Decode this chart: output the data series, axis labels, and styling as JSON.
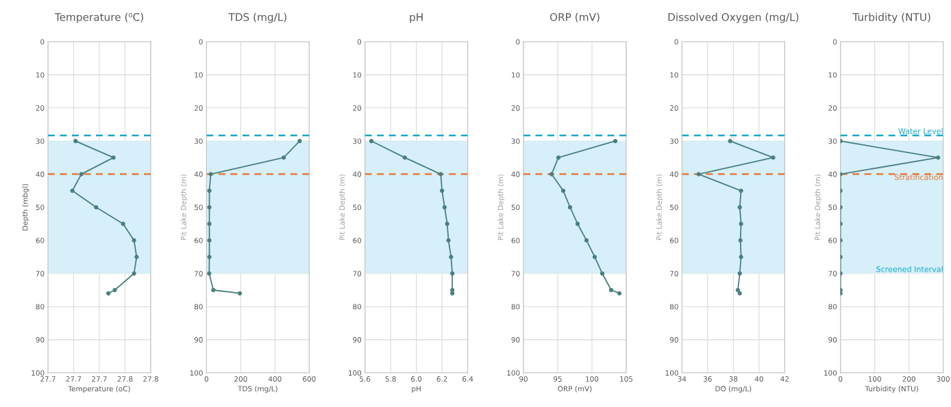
{
  "chart_data": [
    {
      "type": "line",
      "title": "Temperature (⁰C)",
      "xlabel": "Temperature (oC)",
      "ylabel": "Depth (mbgl)",
      "marker": "circle",
      "line_style": "solid",
      "grid": true,
      "series": [
        {
          "color": "#4a7f80",
          "x": [
            27.703,
            27.762,
            27.712,
            27.698,
            27.735,
            27.777,
            27.794,
            27.798,
            27.794,
            27.764,
            27.754
          ],
          "values": [
            30,
            35,
            40,
            45,
            50,
            55,
            60,
            65,
            70,
            75,
            76
          ]
        }
      ],
      "xlim": [
        27.66,
        27.82
      ],
      "xticks": [
        {
          "value": 27.66,
          "label": "27.7"
        },
        {
          "value": 27.7,
          "label": "27.7"
        },
        {
          "value": 27.74,
          "label": "27.7"
        },
        {
          "value": 27.78,
          "label": "27.8"
        },
        {
          "value": 27.82,
          "label": "27.8"
        }
      ],
      "ylim": [
        100,
        0
      ],
      "yticks": [
        0,
        10,
        20,
        30,
        40,
        50,
        60,
        70,
        80,
        90,
        100
      ],
      "ref_lines": [
        {
          "axis": "y",
          "value": 28.3,
          "color": "#17a9c6",
          "line_style": "dashed"
        },
        {
          "axis": "y",
          "value": 40,
          "color": "#e8793a",
          "line_style": "dashed"
        }
      ],
      "bands": [
        {
          "axis": "y",
          "from": 30,
          "to": 70,
          "color": "#d6eff8"
        }
      ]
    },
    {
      "type": "line",
      "title": "TDS (mg/L)",
      "xlabel": "TDS (mg/L)",
      "ylabel": "Pit Lake Depth (m)",
      "marker": "circle",
      "line_style": "solid",
      "grid": true,
      "series": [
        {
          "color": "#4a7f80",
          "x": [
            544,
            451,
            25,
            17,
            17,
            17,
            17,
            17,
            16,
            40,
            195
          ],
          "values": [
            30,
            35,
            40,
            45,
            50,
            55,
            60,
            65,
            70,
            75,
            76
          ]
        }
      ],
      "xlim": [
        0,
        600
      ],
      "xticks": [
        0,
        200,
        400,
        600
      ],
      "ylim": [
        100,
        0
      ],
      "yticks": [
        0,
        10,
        20,
        30,
        40,
        50,
        60,
        70,
        80,
        90,
        100
      ],
      "ref_lines": [
        {
          "axis": "y",
          "value": 28.3,
          "color": "#17a9c6",
          "line_style": "dashed"
        },
        {
          "axis": "y",
          "value": 40,
          "color": "#e8793a",
          "line_style": "dashed"
        }
      ],
      "bands": [
        {
          "axis": "y",
          "from": 30,
          "to": 70,
          "color": "#d6eff8"
        }
      ]
    },
    {
      "type": "line",
      "title": "pH",
      "xlabel": "pH",
      "ylabel": "Pit Lake Depth (m)",
      "marker": "circle",
      "line_style": "solid",
      "grid": true,
      "series": [
        {
          "color": "#4a7f80",
          "x": [
            5.65,
            5.91,
            6.19,
            6.2,
            6.22,
            6.24,
            6.25,
            6.27,
            6.28,
            6.28,
            6.28
          ],
          "values": [
            30,
            35,
            40,
            45,
            50,
            55,
            60,
            65,
            70,
            75,
            76
          ]
        }
      ],
      "xlim": [
        5.6,
        6.4
      ],
      "xticks": [
        {
          "value": 5.6,
          "label": "5.6"
        },
        {
          "value": 5.8,
          "label": "5.8"
        },
        {
          "value": 6.0,
          "label": "6.0"
        },
        {
          "value": 6.2,
          "label": "6.2"
        },
        {
          "value": 6.4,
          "label": "6.4"
        }
      ],
      "ylim": [
        100,
        0
      ],
      "yticks": [
        0,
        10,
        20,
        30,
        40,
        50,
        60,
        70,
        80,
        90,
        100
      ],
      "ref_lines": [
        {
          "axis": "y",
          "value": 28.3,
          "color": "#17a9c6",
          "line_style": "dashed"
        },
        {
          "axis": "y",
          "value": 40,
          "color": "#e8793a",
          "line_style": "dashed"
        }
      ],
      "bands": [
        {
          "axis": "y",
          "from": 30,
          "to": 70,
          "color": "#d6eff8"
        }
      ]
    },
    {
      "type": "line",
      "title": "ORP (mV)",
      "xlabel": "ORP (mV)",
      "ylabel": "Pit Lake Depth (m)",
      "marker": "circle",
      "line_style": "solid",
      "grid": true,
      "series": [
        {
          "color": "#4a7f80",
          "x": [
            103.4,
            95.1,
            94.1,
            95.8,
            96.8,
            97.9,
            99.2,
            100.4,
            101.5,
            102.8,
            104.0
          ],
          "values": [
            30,
            35,
            40,
            45,
            50,
            55,
            60,
            65,
            70,
            75,
            76
          ]
        }
      ],
      "xlim": [
        90,
        105
      ],
      "xticks": [
        90,
        95,
        100,
        105
      ],
      "ylim": [
        100,
        0
      ],
      "yticks": [
        0,
        10,
        20,
        30,
        40,
        50,
        60,
        70,
        80,
        90,
        100
      ],
      "ref_lines": [
        {
          "axis": "y",
          "value": 28.3,
          "color": "#17a9c6",
          "line_style": "dashed"
        },
        {
          "axis": "y",
          "value": 40,
          "color": "#e8793a",
          "line_style": "dashed"
        }
      ],
      "bands": [
        {
          "axis": "y",
          "from": 30,
          "to": 70,
          "color": "#d6eff8"
        }
      ]
    },
    {
      "type": "line",
      "title": "Dissolved Oxygen (mg/L)",
      "xlabel": "DO (mg/L)",
      "ylabel": "Pit Lake Depth (m)",
      "marker": "circle",
      "line_style": "solid",
      "grid": true,
      "series": [
        {
          "color": "#4a7f80",
          "x": [
            37.75,
            41.1,
            35.3,
            38.6,
            38.5,
            38.6,
            38.55,
            38.6,
            38.5,
            38.35,
            38.5
          ],
          "values": [
            30,
            35,
            40,
            45,
            50,
            55,
            60,
            65,
            70,
            75,
            76
          ]
        }
      ],
      "xlim": [
        34,
        42
      ],
      "xticks": [
        34,
        36,
        38,
        40,
        42
      ],
      "ylim": [
        100,
        0
      ],
      "yticks": [
        0,
        10,
        20,
        30,
        40,
        50,
        60,
        70,
        80,
        90,
        100
      ],
      "ref_lines": [
        {
          "axis": "y",
          "value": 28.3,
          "color": "#17a9c6",
          "line_style": "dashed"
        },
        {
          "axis": "y",
          "value": 40,
          "color": "#e8793a",
          "line_style": "dashed"
        }
      ],
      "bands": [
        {
          "axis": "y",
          "from": 30,
          "to": 70,
          "color": "#d6eff8"
        }
      ]
    },
    {
      "type": "line",
      "title": "Turbidity (NTU)",
      "xlabel": "Turbidity (NTU)",
      "ylabel": "Pit Lake Depth (m)",
      "marker": "circle",
      "line_style": "solid",
      "grid": true,
      "series": [
        {
          "color": "#4a7f80",
          "x": [
            0,
            285,
            0,
            0,
            0,
            0,
            0,
            0,
            0,
            0,
            0
          ],
          "values": [
            30,
            35,
            40,
            45,
            50,
            55,
            60,
            65,
            70,
            75,
            76
          ]
        }
      ],
      "xlim": [
        0,
        300
      ],
      "xticks": [
        0,
        100,
        200,
        300
      ],
      "ylim": [
        100,
        0
      ],
      "yticks": [
        0,
        10,
        20,
        30,
        40,
        50,
        60,
        70,
        80,
        90,
        100
      ],
      "ref_lines": [
        {
          "axis": "y",
          "value": 28.3,
          "label": "Water Level",
          "color": "#17a9c6",
          "line_style": "dashed"
        },
        {
          "axis": "y",
          "value": 40,
          "label": "Stratification",
          "color": "#e8793a",
          "line_style": "dashed"
        }
      ],
      "bands": [
        {
          "axis": "y",
          "from": 30,
          "to": 70,
          "label": "Screened Interval",
          "color": "#d6eff8"
        }
      ]
    }
  ]
}
